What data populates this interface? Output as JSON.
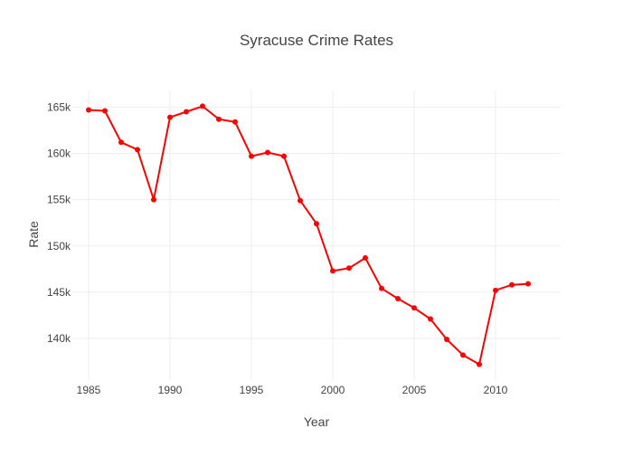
{
  "chart_data": {
    "type": "line",
    "title": "Syracuse Crime Rates",
    "xlabel": "Year",
    "ylabel": "Rate",
    "xlim": [
      1984,
      2014
    ],
    "ylim": [
      135500,
      166800
    ],
    "x_ticks": [
      1985,
      1990,
      1995,
      2000,
      2005,
      2010
    ],
    "x_tick_labels": [
      "1985",
      "1990",
      "1995",
      "2000",
      "2005",
      "2010"
    ],
    "y_ticks": [
      140000,
      145000,
      150000,
      155000,
      160000,
      165000
    ],
    "y_tick_labels": [
      "140k",
      "145k",
      "150k",
      "155k",
      "160k",
      "165k"
    ],
    "grid": true,
    "legend": "none",
    "colors": {
      "line": "#ff0000",
      "marker": "#ff0000",
      "grid": "#eeeeee",
      "text": "#444444",
      "title": "#444444"
    },
    "series": [
      {
        "x": [
          1985,
          1986,
          1987,
          1988,
          1989,
          1990,
          1991,
          1992,
          1993,
          1994,
          1995,
          1996,
          1997,
          1998,
          1999,
          2000,
          2001,
          2002,
          2003,
          2004,
          2005,
          2006,
          2007,
          2008,
          2009,
          2010,
          2011,
          2012
        ],
        "y": [
          164700,
          164600,
          161200,
          160400,
          155000,
          163900,
          164500,
          165100,
          163700,
          163400,
          159700,
          160100,
          159700,
          154900,
          152400,
          147300,
          147600,
          148700,
          145400,
          144300,
          143300,
          142100,
          139900,
          138200,
          137200,
          145200,
          145800,
          145900
        ]
      }
    ]
  }
}
